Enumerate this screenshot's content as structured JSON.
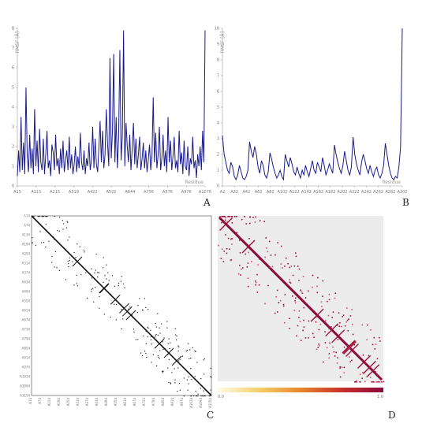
{
  "panels": {
    "a": {
      "letter": "A"
    },
    "b": {
      "letter": "B"
    },
    "c": {
      "letter": "C"
    },
    "d": {
      "letter": "D"
    }
  },
  "colorbar": {
    "min_label": "0.0",
    "max_label": "1.0",
    "colors": [
      "#fffbe6",
      "#f5d06a",
      "#e8862c",
      "#c8302c",
      "#8b0a3a"
    ]
  },
  "chart_data": [
    {
      "id": "A",
      "type": "line",
      "ylabel": "RMSF [Å]",
      "xlabel": "Residue",
      "ylim": [
        0,
        8
      ],
      "yticks": [
        "0",
        "1",
        "2",
        "3",
        "4",
        "5",
        "6",
        "7",
        "8"
      ],
      "xticks": [
        "A15",
        "A115",
        "A215",
        "A319",
        "A422",
        "A522",
        "A644",
        "A756",
        "A876",
        "A976",
        "A1076"
      ],
      "line_color": "#1a1a8c",
      "series": [
        {
          "values": [
            0.5,
            1.8,
            0.7,
            3.5,
            0.8,
            2.2,
            0.6,
            5.0,
            1.5,
            0.7,
            2.6,
            0.9,
            1.9,
            0.6,
            3.9,
            1.0,
            2.3,
            0.7,
            2.9,
            1.2,
            0.8,
            2.4,
            0.6,
            1.6,
            2.8,
            0.9,
            1.3,
            0.5,
            2.1,
            1.7,
            0.8,
            2.6,
            1.0,
            1.4,
            0.6,
            1.9,
            0.9,
            2.3,
            0.7,
            1.3,
            1.8,
            0.8,
            2.5,
            0.9,
            1.6,
            0.6,
            1.1,
            2.0,
            0.7,
            1.5,
            0.9,
            2.7,
            1.2,
            0.8,
            1.8,
            0.6,
            1.4,
            1.0,
            2.2,
            0.8,
            1.3,
            3.0,
            0.9,
            2.4,
            1.1,
            0.7,
            1.9,
            3.3,
            1.2,
            2.8,
            0.9,
            1.6,
            3.9,
            2.2,
            1.0,
            6.5,
            1.4,
            2.8,
            6.7,
            1.2,
            3.5,
            0.9,
            2.5,
            6.9,
            1.3,
            2.6,
            7.9,
            1.0,
            3.2,
            2.0,
            1.2,
            2.6,
            0.8,
            1.9,
            3.2,
            1.1,
            2.4,
            0.9,
            1.6,
            2.5,
            0.8,
            1.4,
            2.2,
            0.9,
            1.8,
            0.7,
            1.3,
            2.1,
            0.8,
            1.5,
            4.5,
            1.2,
            2.7,
            0.9,
            1.6,
            3.0,
            0.8,
            1.4,
            2.6,
            1.0,
            1.8,
            0.7,
            3.5,
            1.2,
            2.3,
            0.8,
            1.5,
            2.5,
            0.9,
            1.3,
            0.7,
            2.8,
            1.1,
            1.7,
            0.6,
            2.3,
            1.0,
            0.8,
            2.0,
            0.5,
            1.4,
            1.1,
            2.5,
            0.9,
            1.3,
            0.4,
            1.6,
            1.0,
            2.0,
            0.8,
            2.8,
            1.2,
            7.9
          ]
        }
      ]
    },
    {
      "id": "B",
      "type": "line",
      "ylabel": "RMSF [Å]",
      "xlabel": "Residue",
      "ylim": [
        0,
        10
      ],
      "yticks": [
        "0",
        "1",
        "2",
        "3",
        "4",
        "5",
        "6",
        "7",
        "8",
        "9",
        "10"
      ],
      "xticks": [
        "A2",
        "A22",
        "A42",
        "A62",
        "A82",
        "A102",
        "A122",
        "A142",
        "A162",
        "A182",
        "A202",
        "A222",
        "A242",
        "A262",
        "A282",
        "A302"
      ],
      "line_color": "#1a1a8c",
      "series": [
        {
          "values": [
            3.2,
            2.0,
            1.5,
            1.0,
            0.8,
            1.5,
            1.2,
            0.6,
            0.4,
            0.7,
            1.3,
            0.9,
            0.5,
            0.4,
            0.6,
            1.0,
            2.8,
            2.2,
            1.8,
            2.5,
            2.0,
            1.2,
            0.8,
            1.6,
            1.3,
            0.7,
            0.5,
            0.9,
            2.1,
            1.7,
            1.2,
            0.8,
            0.5,
            0.7,
            1.0,
            0.6,
            0.4,
            2.0,
            1.6,
            1.2,
            1.8,
            1.4,
            0.9,
            0.7,
            1.2,
            0.8,
            0.5,
            1.0,
            0.7,
            1.3,
            0.9,
            0.6,
            1.1,
            1.6,
            1.0,
            0.8,
            1.5,
            1.2,
            0.9,
            1.8,
            1.3,
            0.7,
            1.0,
            1.4,
            1.1,
            0.8,
            2.6,
            2.0,
            1.5,
            1.1,
            0.8,
            1.3,
            2.2,
            1.6,
            1.0,
            0.7,
            1.2,
            3.1,
            2.0,
            1.4,
            1.0,
            0.7,
            1.5,
            2.0,
            1.6,
            1.1,
            0.8,
            1.3,
            0.9,
            0.6,
            1.0,
            1.2,
            0.7,
            0.5,
            0.8,
            1.3,
            2.7,
            2.0,
            1.3,
            0.8,
            0.5,
            0.4,
            0.6,
            0.5,
            1.2,
            2.5,
            10.0
          ]
        }
      ]
    },
    {
      "id": "C",
      "type": "heatmap",
      "ylabels": [
        "A14",
        "A74",
        "A134",
        "A194",
        "A254",
        "A314",
        "A374",
        "A434",
        "A494",
        "A554",
        "A614",
        "A674",
        "A734",
        "A794",
        "A854",
        "A914",
        "A974",
        "A1034",
        "A1094",
        "A1154"
      ],
      "xlabels": [
        "A14",
        "A74",
        "A134",
        "A194",
        "A254",
        "A314",
        "A374",
        "A434",
        "A494",
        "A554",
        "A614",
        "A674",
        "A734",
        "A794",
        "A854",
        "A914",
        "A974",
        "A1034",
        "A1094",
        "A1154"
      ]
    },
    {
      "id": "D",
      "type": "heatmap",
      "colorbar": {
        "min": 0.0,
        "max": 1.0
      }
    }
  ]
}
